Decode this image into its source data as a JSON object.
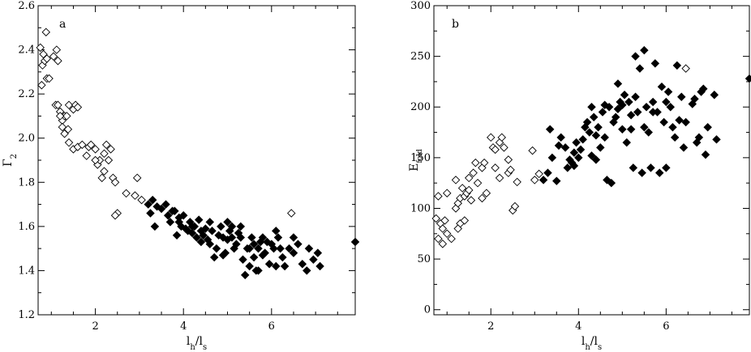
{
  "chart_data": [
    {
      "type": "scatter",
      "panel_label": "a",
      "xlabel": "l",
      "xlabel_sub1": "h",
      "xlabel_mid": "/l",
      "xlabel_sub2": "s",
      "ylabel": "Γ",
      "ylabel_sub": "2",
      "xlim": [
        0.7,
        7.9
      ],
      "ylim": [
        1.2,
        2.6
      ],
      "x_ticks": [
        2,
        4,
        6
      ],
      "x_tick_labels": [
        "2",
        "4",
        "6"
      ],
      "y_ticks": [
        1.2,
        1.4,
        1.6,
        1.8,
        2.0,
        2.2,
        2.4,
        2.6
      ],
      "y_tick_labels": [
        "1.2",
        "1.4",
        "1.6",
        "1.8",
        "2.0",
        "2.2",
        "2.4",
        "2.6"
      ],
      "grid": false,
      "series": [
        {
          "marker": "open-diamond",
          "points": [
            [
              0.75,
              2.41
            ],
            [
              0.82,
              2.38
            ],
            [
              0.88,
              2.48
            ],
            [
              0.8,
              2.33
            ],
            [
              0.85,
              2.35
            ],
            [
              0.9,
              2.27
            ],
            [
              0.95,
              2.27
            ],
            [
              0.78,
              2.24
            ],
            [
              0.9,
              2.36
            ],
            [
              1.05,
              2.37
            ],
            [
              1.12,
              2.4
            ],
            [
              1.15,
              2.35
            ],
            [
              1.1,
              2.15
            ],
            [
              1.15,
              2.15
            ],
            [
              1.2,
              2.12
            ],
            [
              1.25,
              2.08
            ],
            [
              1.3,
              2.1
            ],
            [
              1.35,
              2.1
            ],
            [
              1.4,
              2.15
            ],
            [
              1.5,
              2.13
            ],
            [
              1.55,
              2.15
            ],
            [
              1.25,
              2.05
            ],
            [
              1.3,
              2.02
            ],
            [
              1.38,
              2.04
            ],
            [
              1.2,
              2.1
            ],
            [
              1.4,
              1.98
            ],
            [
              1.5,
              1.95
            ],
            [
              1.6,
              1.96
            ],
            [
              1.7,
              1.97
            ],
            [
              1.8,
              1.92
            ],
            [
              1.85,
              1.96
            ],
            [
              1.9,
              1.97
            ],
            [
              2.0,
              1.95
            ],
            [
              2.05,
              1.88
            ],
            [
              2.1,
              1.9
            ],
            [
              2.2,
              1.93
            ],
            [
              2.25,
              1.97
            ],
            [
              2.3,
              1.9
            ],
            [
              2.35,
              1.95
            ],
            [
              2.15,
              1.82
            ],
            [
              2.2,
              1.85
            ],
            [
              2.4,
              1.82
            ],
            [
              2.45,
              1.8
            ],
            [
              2.5,
              1.66
            ],
            [
              2.45,
              1.65
            ],
            [
              2.7,
              1.75
            ],
            [
              2.9,
              1.74
            ],
            [
              2.95,
              1.82
            ],
            [
              3.05,
              1.72
            ],
            [
              6.45,
              1.66
            ],
            [
              1.6,
              2.14
            ],
            [
              2.0,
              1.9
            ]
          ]
        },
        {
          "marker": "filled-diamond",
          "points": [
            [
              3.2,
              1.7
            ],
            [
              3.25,
              1.66
            ],
            [
              3.3,
              1.72
            ],
            [
              3.35,
              1.6
            ],
            [
              3.4,
              1.69
            ],
            [
              3.5,
              1.68
            ],
            [
              3.6,
              1.7
            ],
            [
              3.65,
              1.65
            ],
            [
              3.7,
              1.62
            ],
            [
              3.75,
              1.67
            ],
            [
              3.8,
              1.67
            ],
            [
              3.85,
              1.56
            ],
            [
              3.9,
              1.62
            ],
            [
              3.95,
              1.6
            ],
            [
              4.0,
              1.65
            ],
            [
              4.05,
              1.59
            ],
            [
              4.1,
              1.58
            ],
            [
              4.15,
              1.62
            ],
            [
              4.2,
              1.57
            ],
            [
              4.25,
              1.6
            ],
            [
              4.3,
              1.55
            ],
            [
              4.35,
              1.63
            ],
            [
              4.4,
              1.58
            ],
            [
              4.45,
              1.56
            ],
            [
              4.5,
              1.59
            ],
            [
              4.55,
              1.54
            ],
            [
              4.6,
              1.52
            ],
            [
              4.65,
              1.58
            ],
            [
              4.7,
              1.46
            ],
            [
              4.75,
              1.5
            ],
            [
              4.8,
              1.56
            ],
            [
              4.85,
              1.6
            ],
            [
              4.9,
              1.55
            ],
            [
              4.95,
              1.48
            ],
            [
              5.0,
              1.62
            ],
            [
              5.05,
              1.58
            ],
            [
              5.1,
              1.55
            ],
            [
              5.15,
              1.5
            ],
            [
              5.2,
              1.52
            ],
            [
              5.25,
              1.57
            ],
            [
              5.3,
              1.55
            ],
            [
              5.35,
              1.45
            ],
            [
              5.4,
              1.38
            ],
            [
              5.45,
              1.5
            ],
            [
              5.5,
              1.42
            ],
            [
              5.55,
              1.55
            ],
            [
              5.6,
              1.52
            ],
            [
              5.65,
              1.4
            ],
            [
              5.7,
              1.5
            ],
            [
              5.75,
              1.53
            ],
            [
              5.8,
              1.55
            ],
            [
              5.85,
              1.48
            ],
            [
              5.9,
              1.53
            ],
            [
              5.95,
              1.43
            ],
            [
              6.0,
              1.52
            ],
            [
              6.05,
              1.5
            ],
            [
              6.1,
              1.42
            ],
            [
              6.15,
              1.55
            ],
            [
              6.2,
              1.5
            ],
            [
              6.25,
              1.46
            ],
            [
              6.3,
              1.42
            ],
            [
              6.4,
              1.5
            ],
            [
              6.5,
              1.55
            ],
            [
              6.6,
              1.52
            ],
            [
              6.7,
              1.43
            ],
            [
              6.8,
              1.4
            ],
            [
              6.85,
              1.5
            ],
            [
              6.95,
              1.45
            ],
            [
              7.05,
              1.48
            ],
            [
              7.1,
              1.42
            ],
            [
              5.1,
              1.6
            ],
            [
              4.9,
              1.47
            ],
            [
              5.6,
              1.46
            ],
            [
              6.1,
              1.58
            ],
            [
              4.6,
              1.62
            ],
            [
              5.3,
              1.6
            ],
            [
              5.8,
              1.47
            ],
            [
              5.0,
              1.54
            ],
            [
              5.5,
              1.5
            ],
            [
              4.4,
              1.53
            ],
            [
              4.2,
              1.6
            ],
            [
              3.9,
              1.64
            ],
            [
              6.5,
              1.48
            ],
            [
              5.7,
              1.4
            ],
            [
              7.9,
              1.53
            ]
          ]
        }
      ]
    },
    {
      "type": "scatter",
      "panel_label": "b",
      "xlabel": "l",
      "xlabel_sub1": "h",
      "xlabel_mid": "/l",
      "xlabel_sub2": "s",
      "ylabel": "E",
      "ylabel_sub": "fold",
      "xlim": [
        0.7,
        7.9
      ],
      "ylim": [
        -5,
        300
      ],
      "x_ticks": [
        2,
        4,
        6
      ],
      "x_tick_labels": [
        "2",
        "4",
        "6"
      ],
      "y_ticks": [
        0,
        50,
        100,
        150,
        200,
        250,
        300
      ],
      "y_tick_labels": [
        "0",
        "50",
        "100",
        "150",
        "200",
        "250",
        "300"
      ],
      "grid": false,
      "series": [
        {
          "marker": "open-diamond",
          "points": [
            [
              0.75,
              90
            ],
            [
              0.8,
              70
            ],
            [
              0.85,
              85
            ],
            [
              0.9,
              65
            ],
            [
              0.95,
              88
            ],
            [
              1.0,
              75
            ],
            [
              1.0,
              115
            ],
            [
              0.8,
              112
            ],
            [
              0.9,
              80
            ],
            [
              1.1,
              70
            ],
            [
              1.2,
              100
            ],
            [
              1.25,
              105
            ],
            [
              1.3,
              110
            ],
            [
              1.35,
              120
            ],
            [
              1.4,
              112
            ],
            [
              1.45,
              115
            ],
            [
              1.5,
              118
            ],
            [
              1.55,
              108
            ],
            [
              1.3,
              85
            ],
            [
              1.25,
              80
            ],
            [
              1.4,
              88
            ],
            [
              1.5,
              130
            ],
            [
              1.6,
              135
            ],
            [
              1.7,
              125
            ],
            [
              1.8,
              140
            ],
            [
              1.85,
              145
            ],
            [
              1.9,
              115
            ],
            [
              2.0,
              170
            ],
            [
              2.05,
              160
            ],
            [
              2.1,
              158
            ],
            [
              2.2,
              165
            ],
            [
              2.25,
              170
            ],
            [
              2.3,
              160
            ],
            [
              2.1,
              140
            ],
            [
              2.2,
              130
            ],
            [
              2.4,
              135
            ],
            [
              2.45,
              138
            ],
            [
              2.5,
              98
            ],
            [
              2.55,
              102
            ],
            [
              2.6,
              126
            ],
            [
              2.95,
              157
            ],
            [
              3.0,
              128
            ],
            [
              3.1,
              134
            ],
            [
              1.2,
              128
            ],
            [
              1.8,
              110
            ],
            [
              2.4,
              148
            ],
            [
              6.45,
              238
            ],
            [
              1.65,
              145
            ]
          ]
        },
        {
          "marker": "filled-diamond",
          "points": [
            [
              3.2,
              128
            ],
            [
              3.3,
              135
            ],
            [
              3.35,
              178
            ],
            [
              3.4,
              150
            ],
            [
              3.5,
              127
            ],
            [
              3.55,
              162
            ],
            [
              3.6,
              170
            ],
            [
              3.7,
              160
            ],
            [
              3.75,
              140
            ],
            [
              3.8,
              148
            ],
            [
              3.85,
              145
            ],
            [
              3.9,
              155
            ],
            [
              3.95,
              165
            ],
            [
              4.0,
              150
            ],
            [
              4.05,
              158
            ],
            [
              4.1,
              168
            ],
            [
              4.15,
              180
            ],
            [
              4.2,
              185
            ],
            [
              4.25,
              175
            ],
            [
              4.3,
              200
            ],
            [
              4.35,
              190
            ],
            [
              4.4,
              172
            ],
            [
              4.45,
              180
            ],
            [
              4.5,
              160
            ],
            [
              4.55,
              195
            ],
            [
              4.6,
              170
            ],
            [
              4.65,
              128
            ],
            [
              4.7,
              200
            ],
            [
              4.75,
              125
            ],
            [
              4.8,
              185
            ],
            [
              4.85,
              190
            ],
            [
              4.9,
              223
            ],
            [
              4.95,
              205
            ],
            [
              5.0,
              178
            ],
            [
              5.05,
              212
            ],
            [
              5.1,
              165
            ],
            [
              5.15,
              205
            ],
            [
              5.2,
              178
            ],
            [
              5.25,
              140
            ],
            [
              5.3,
              250
            ],
            [
              5.35,
              195
            ],
            [
              5.4,
              238
            ],
            [
              5.45,
              135
            ],
            [
              5.5,
              256
            ],
            [
              5.55,
              200
            ],
            [
              5.6,
              175
            ],
            [
              5.65,
              140
            ],
            [
              5.7,
              205
            ],
            [
              5.75,
              243
            ],
            [
              5.8,
              195
            ],
            [
              5.85,
              135
            ],
            [
              5.9,
              220
            ],
            [
              5.95,
              185
            ],
            [
              6.0,
              140
            ],
            [
              6.05,
              215
            ],
            [
              6.1,
              200
            ],
            [
              6.15,
              180
            ],
            [
              6.2,
              170
            ],
            [
              6.25,
              241
            ],
            [
              6.3,
              187
            ],
            [
              6.35,
              210
            ],
            [
              6.4,
              160
            ],
            [
              6.45,
              185
            ],
            [
              6.6,
              203
            ],
            [
              6.65,
              208
            ],
            [
              6.7,
              165
            ],
            [
              6.75,
              170
            ],
            [
              6.8,
              215
            ],
            [
              6.85,
              218
            ],
            [
              6.9,
              153
            ],
            [
              6.95,
              180
            ],
            [
              7.1,
              212
            ],
            [
              7.15,
              168
            ],
            [
              4.3,
              152
            ],
            [
              4.9,
              198
            ],
            [
              5.2,
              192
            ],
            [
              5.5,
              180
            ],
            [
              5.7,
              195
            ],
            [
              4.6,
              202
            ],
            [
              5.0,
              202
            ],
            [
              4.4,
              148
            ],
            [
              3.9,
              142
            ],
            [
              6.0,
              205
            ],
            [
              5.3,
              210
            ],
            [
              7.9,
              228
            ]
          ]
        }
      ]
    }
  ]
}
